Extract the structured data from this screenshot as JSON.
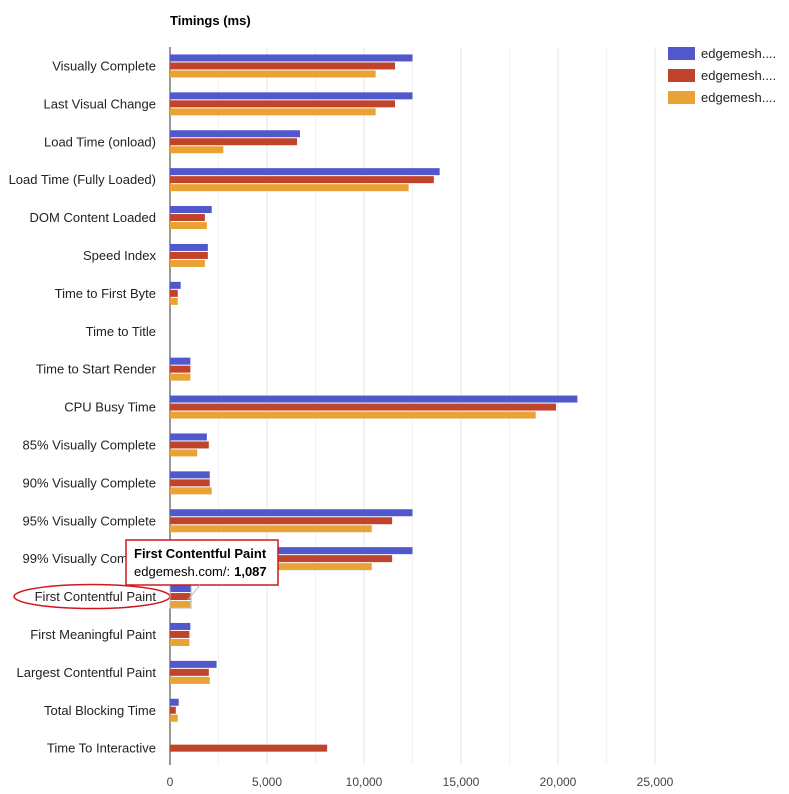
{
  "chart_data": {
    "type": "bar",
    "orientation": "horizontal",
    "title": "Timings (ms)",
    "xlim": [
      0,
      25000
    ],
    "xticks": [
      0,
      5000,
      10000,
      15000,
      20000,
      25000
    ],
    "xtick_labels": [
      "0",
      "5,000",
      "10,000",
      "15,000",
      "20,000",
      "25,000"
    ],
    "grid": true,
    "legend_position": "top-right",
    "categories": [
      "Visually Complete",
      "Last Visual Change",
      "Load Time (onload)",
      "Load Time (Fully Loaded)",
      "DOM Content Loaded",
      "Speed Index",
      "Time to First Byte",
      "Time to Title",
      "Time to Start Render",
      "CPU Busy Time",
      "85% Visually Complete",
      "90% Visually Complete",
      "95% Visually Complete",
      "99% Visually Complete",
      "First Contentful Paint",
      "First Meaningful Paint",
      "Largest Contentful Paint",
      "Total Blocking Time",
      "Time To Interactive"
    ],
    "series": [
      {
        "name": "edgemesh....",
        "color": "#5058cc",
        "values": [
          12500,
          12500,
          6700,
          13900,
          2150,
          1950,
          550,
          0,
          1050,
          21000,
          1900,
          2050,
          12500,
          12500,
          1087,
          1050,
          2400,
          450,
          0
        ]
      },
      {
        "name": "edgemesh....",
        "color": "#c0432b",
        "values": [
          11600,
          11600,
          6550,
          13600,
          1800,
          1950,
          400,
          0,
          1050,
          19900,
          2000,
          2050,
          11450,
          11450,
          1050,
          1000,
          2000,
          300,
          8100
        ]
      },
      {
        "name": "edgemesh....",
        "color": "#e8a236",
        "values": [
          10600,
          10600,
          2750,
          12300,
          1900,
          1800,
          400,
          0,
          1050,
          18850,
          1400,
          2150,
          10400,
          10400,
          1050,
          1000,
          2050,
          400,
          0
        ]
      }
    ],
    "tooltip": {
      "title": "First Contentful Paint",
      "series_label": "edgemesh.com/:",
      "value": "1,087"
    }
  },
  "colors": {
    "grid": "#e6e6e6",
    "axis": "#333333",
    "highlight": "#d0181c"
  }
}
